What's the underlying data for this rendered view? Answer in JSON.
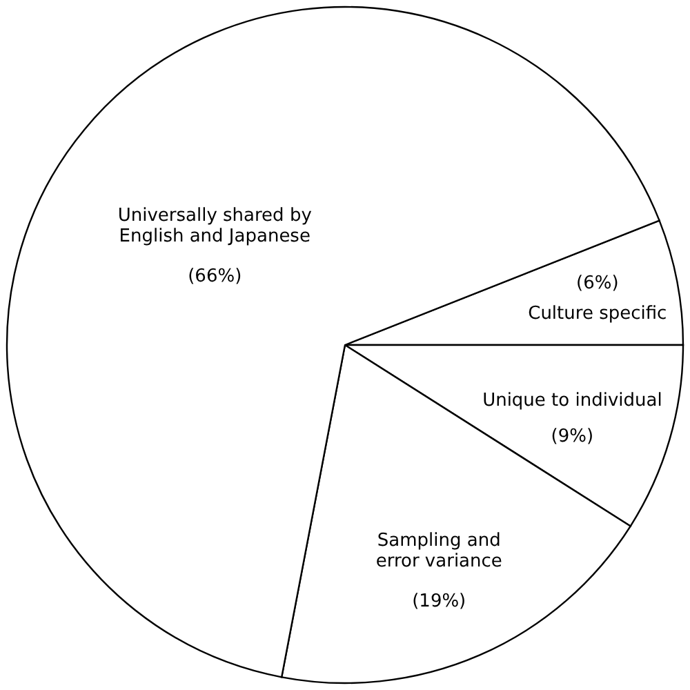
{
  "chart_data": {
    "type": "pie",
    "categories": [
      "Culture specific",
      "Unique to individual",
      "Sampling and\nerror variance",
      "Universally shared by\nEnglish and Japanese"
    ],
    "values": [
      6,
      9,
      19,
      66
    ],
    "value_labels": [
      "(6%)",
      "(9%)",
      "(19%)",
      "(66%)"
    ],
    "colors": [
      "#ffffff",
      "#ffffff",
      "#ffffff",
      "#ffffff"
    ]
  }
}
